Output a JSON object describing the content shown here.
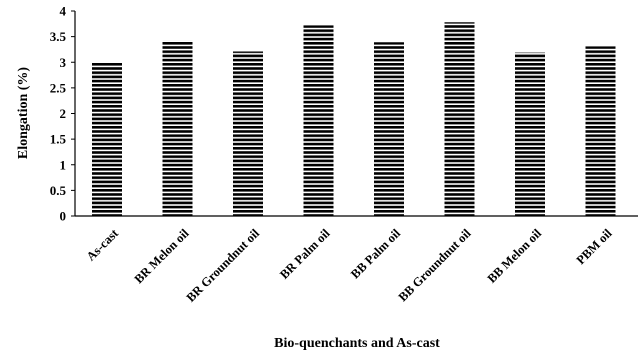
{
  "chart_data": {
    "type": "bar",
    "categories": [
      "As-cast",
      "BR Melon oil",
      "BR Groundnut oil",
      "BR Palm oil",
      "BB Palm oil",
      "BB Groundnut oil",
      "BB Melon oil",
      "PBM oil"
    ],
    "values": [
      3.0,
      3.42,
      3.21,
      3.72,
      3.39,
      3.78,
      3.19,
      3.31
    ],
    "xlabel": "Bio-quenchants and As-cast",
    "ylabel": "Elongation (%)",
    "ylim": [
      0,
      4
    ],
    "yticks": [
      "0",
      "0.5",
      "1",
      "1.5",
      "2",
      "2.5",
      "3",
      "3.5",
      "4"
    ],
    "grid": false,
    "legend": "none",
    "bar_pattern": "horizontal-stripes",
    "bar_color": "#000000"
  }
}
